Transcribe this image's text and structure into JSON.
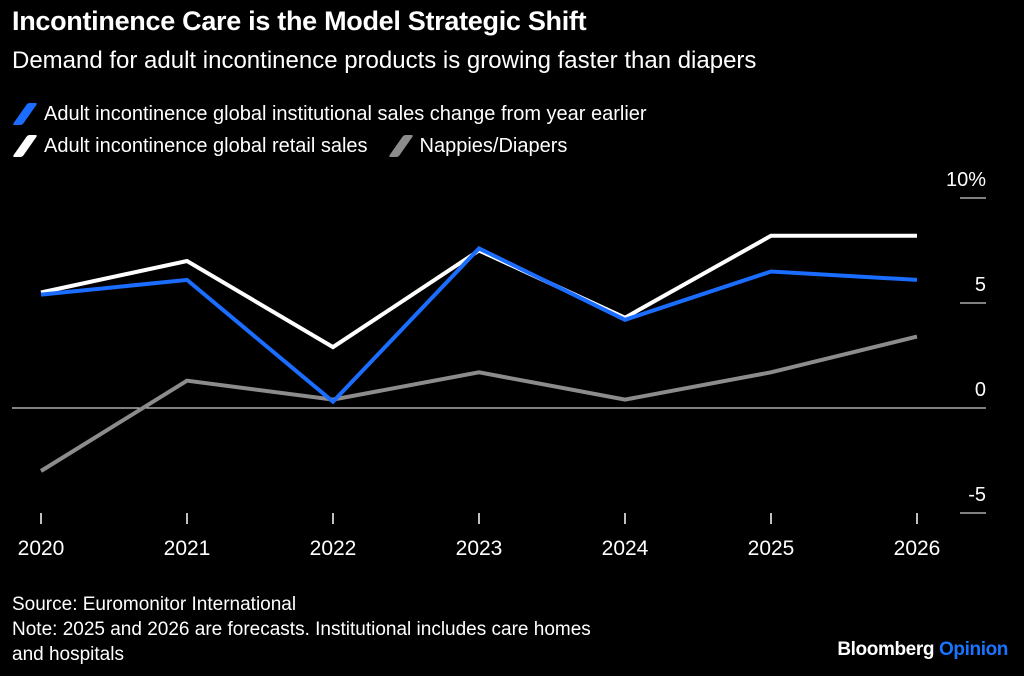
{
  "title": "Incontinence Care is the Model Strategic Shift",
  "subtitle": "Demand for adult incontinence products is growing faster than diapers",
  "source": "Source: Euromonitor International",
  "note_line1": "Note: 2025 and 2026 are forecasts. Institutional includes care homes",
  "note_line2": "and hospitals",
  "brand": {
    "name": "Bloomberg",
    "product": "Opinion"
  },
  "colors": {
    "institutional": "#1a6dff",
    "retail": "#ffffff",
    "diapers": "#8c8c8c",
    "background": "#000000"
  },
  "chart_data": {
    "type": "line",
    "x": [
      "2020",
      "2021",
      "2022",
      "2023",
      "2024",
      "2025",
      "2026"
    ],
    "series": [
      {
        "name": "Adult incontinence global institutional sales change from year earlier",
        "color": "#1a6dff",
        "values": [
          5.4,
          6.1,
          0.3,
          7.6,
          4.2,
          6.5,
          6.1
        ]
      },
      {
        "name": "Adult incontinence global retail sales",
        "color": "#ffffff",
        "values": [
          5.5,
          7.0,
          2.9,
          7.5,
          4.3,
          8.2,
          8.2
        ]
      },
      {
        "name": "Nappies/Diapers",
        "color": "#8c8c8c",
        "values": [
          -3.0,
          1.3,
          0.4,
          1.7,
          0.4,
          1.7,
          3.4
        ]
      }
    ],
    "y_ticks": [
      "10%",
      "5",
      "0",
      "-5"
    ],
    "y_tick_values": [
      10,
      5,
      0,
      -5
    ],
    "ylim": [
      -5,
      10
    ],
    "grid": false,
    "zero_line": true,
    "y_axis_side": "right",
    "legend_position": "top-left"
  }
}
